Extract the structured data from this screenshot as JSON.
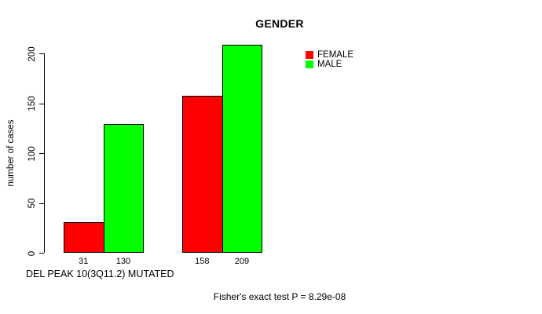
{
  "chart_data": {
    "type": "bar",
    "title": "GENDER",
    "ylabel": "number of cases",
    "xlabel": "DEL PEAK 10(3Q11.2) MUTATED",
    "annotation": "Fisher's exact test P = 8.29e-08",
    "series": [
      {
        "name": "FEMALE",
        "color": "#ff0000",
        "values": [
          31,
          158
        ]
      },
      {
        "name": "MALE",
        "color": "#00ff00",
        "values": [
          130,
          209
        ]
      }
    ],
    "bar_labels": [
      [
        "31",
        "130"
      ],
      [
        "158",
        "209"
      ]
    ],
    "yticks": [
      0,
      50,
      100,
      150,
      200
    ],
    "ylim": [
      0,
      209
    ],
    "grid": false,
    "legend_position": "top-right",
    "bar_border_color": "#000000",
    "background_color": "#ffffff"
  }
}
